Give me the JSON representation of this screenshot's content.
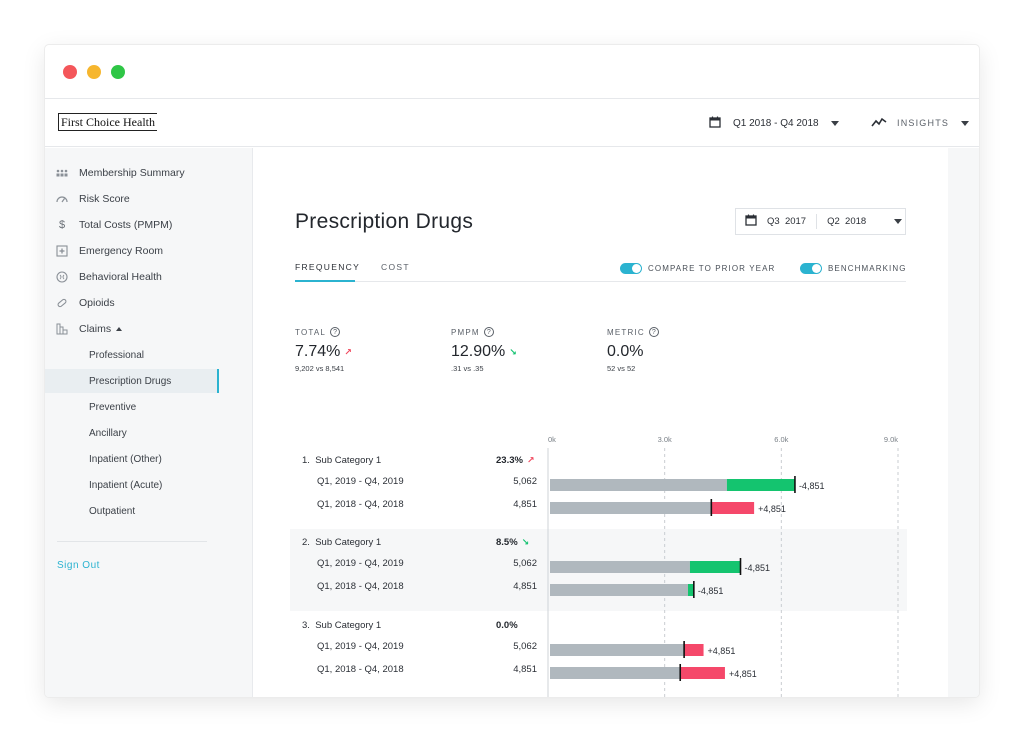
{
  "window": {
    "controls": [
      "close",
      "minimize",
      "maximize"
    ]
  },
  "header": {
    "logo_text": "First Choice Health",
    "date_range": "Q1 2018 - Q4 2018",
    "insights_label": "INSIGHTS"
  },
  "sidebar": {
    "items": [
      {
        "label": "Membership Summary",
        "icon": "people-icon"
      },
      {
        "label": "Risk Score",
        "icon": "gauge-icon"
      },
      {
        "label": "Total Costs (PMPM)",
        "icon": "dollar-icon"
      },
      {
        "label": "Emergency Room",
        "icon": "hospital-icon"
      },
      {
        "label": "Behavioral Health",
        "icon": "brain-icon"
      },
      {
        "label": "Opioids",
        "icon": "pill-icon"
      },
      {
        "label": "Claims",
        "icon": "claims-icon"
      }
    ],
    "claims_sub": [
      "Professional",
      "Prescription Drugs",
      "Preventive",
      "Ancillary",
      "Inpatient (Other)",
      "Inpatient (Acute)",
      "Outpatient"
    ],
    "active_sub": "Prescription Drugs",
    "sign_out": "Sign Out"
  },
  "page": {
    "title": "Prescription Drugs",
    "period": {
      "from": "Q3  2017",
      "to": "Q2  2018"
    },
    "tabs": [
      "FREQUENCY",
      "COST"
    ],
    "active_tab": "FREQUENCY",
    "toggles": [
      {
        "label": "COMPARE TO PRIOR YEAR",
        "on": true
      },
      {
        "label": "BENCHMARKING",
        "on": true
      }
    ],
    "metrics": [
      {
        "label": "TOTAL",
        "value": "7.74%",
        "trend": "up",
        "sub": "9,202 vs 8,541"
      },
      {
        "label": "PMPM",
        "value": "12.90%",
        "trend": "down",
        "sub": ".31 vs .35"
      },
      {
        "label": "METRIC",
        "value": "0.0%",
        "trend": "none",
        "sub": "52 vs 52"
      }
    ]
  },
  "chart_data": {
    "type": "bar",
    "axis_ticks": [
      "0k",
      "3.0k",
      "6.0k",
      "9.0k"
    ],
    "xlim": [
      0,
      9000
    ],
    "colors": {
      "base": "#b0b8be",
      "increase": "#14c46f",
      "decrease": "#f5486a",
      "marker": "#111111"
    },
    "categories": [
      {
        "index": "1.",
        "name": "Sub Category 1",
        "change": "23.3%",
        "trend": "up",
        "rows": [
          {
            "label": "Q1, 2019 - Q4, 2019",
            "value_text": "5,062",
            "base": 4600,
            "delta": 1750,
            "delta_type": "increase",
            "marker": 6350,
            "delta_label": "-4,851"
          },
          {
            "label": "Q1, 2018 - Q4, 2018",
            "value_text": "4,851",
            "base": 4200,
            "delta": 1100,
            "delta_type": "decrease",
            "marker": 4200,
            "delta_label": "+4,851"
          }
        ]
      },
      {
        "index": "2.",
        "name": "Sub Category 1",
        "change": "8.5%",
        "trend": "down",
        "rows": [
          {
            "label": "Q1, 2019 - Q4, 2019",
            "value_text": "5,062",
            "base": 3650,
            "delta": 1300,
            "delta_type": "increase",
            "marker": 4950,
            "delta_label": "-4,851"
          },
          {
            "label": "Q1, 2018 - Q4, 2018",
            "value_text": "4,851",
            "base": 3600,
            "delta": 150,
            "delta_type": "increase",
            "marker": 3750,
            "delta_label": "-4,851"
          }
        ]
      },
      {
        "index": "3.",
        "name": "Sub Category 1",
        "change": "0.0%",
        "trend": "none",
        "rows": [
          {
            "label": "Q1, 2019 - Q4, 2019",
            "value_text": "5,062",
            "base": 3500,
            "delta": 500,
            "delta_type": "decrease",
            "marker": 3500,
            "delta_label": "+4,851"
          },
          {
            "label": "Q1, 2018 - Q4, 2018",
            "value_text": "4,851",
            "base": 3400,
            "delta": 1150,
            "delta_type": "decrease",
            "marker": 3400,
            "delta_label": "+4,851"
          }
        ]
      }
    ]
  }
}
